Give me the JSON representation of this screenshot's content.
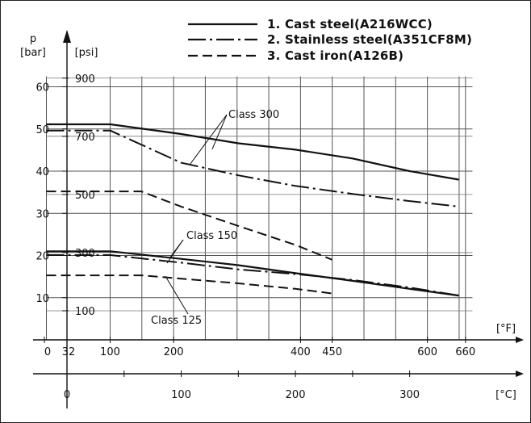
{
  "chart_data": {
    "type": "line",
    "title": "",
    "axes": {
      "left_bar": {
        "label": "p",
        "unit": "[bar]",
        "ticks": [
          10,
          20,
          30,
          40,
          50,
          60
        ],
        "range": [
          0,
          64
        ]
      },
      "left_psi": {
        "unit": "[psi]",
        "ticks": [
          100,
          300,
          500,
          700,
          900
        ]
      },
      "bottom_f": {
        "unit": "[°F]",
        "ticks": [
          "0",
          "32",
          "100",
          "200",
          "400",
          "450",
          "600",
          "660"
        ]
      },
      "bottom_c": {
        "unit": "[°C]",
        "ticks": [
          "0",
          "100",
          "200",
          "300"
        ],
        "range": [
          -18,
          355
        ]
      }
    },
    "legend": {
      "placement": "top-right",
      "entries": [
        {
          "label": "1.  Cast steel(A216WCC)",
          "style": "solid"
        },
        {
          "label": "2.  Stainless steel(A351CF8M)",
          "style": "dash-dot"
        },
        {
          "label": "3.  Cast iron(A126B)",
          "style": "dashed"
        }
      ]
    },
    "annotations": [
      "Class 300",
      "Class 150",
      "Class 125"
    ],
    "series": [
      {
        "name": "1.  Cast steel(A216WCC)",
        "group": "Class 300",
        "style": "solid",
        "x_c": [
          -18,
          38,
          100,
          150,
          200,
          250,
          300,
          343
        ],
        "y_bar": [
          51.1,
          51.1,
          48.8,
          46.6,
          45.1,
          43.0,
          40.0,
          38.0
        ]
      },
      {
        "name": "2.  Stainless steel(A351CF8M)",
        "group": "Class 300",
        "style": "dash-dot",
        "x_c": [
          -18,
          38,
          100,
          150,
          200,
          250,
          300,
          343
        ],
        "y_bar": [
          49.6,
          49.6,
          42.0,
          39.0,
          36.5,
          34.6,
          32.9,
          31.6
        ]
      },
      {
        "name": "3.  Cast iron(A126B)",
        "group": "Class 300",
        "style": "dashed",
        "x_c": [
          -18,
          65,
          100,
          150,
          200,
          232
        ],
        "y_bar": [
          35.2,
          35.2,
          31.6,
          27.0,
          22.5,
          19.0
        ]
      },
      {
        "name": "1.  Cast steel(A216WCC)",
        "group": "Class 150",
        "style": "solid",
        "x_c": [
          -18,
          38,
          100,
          150,
          200,
          250,
          300,
          343
        ],
        "y_bar": [
          21.0,
          21.0,
          19.2,
          17.7,
          15.8,
          14.0,
          12.1,
          10.5
        ]
      },
      {
        "name": "2.  Stainless steel(A351CF8M)",
        "group": "Class 150",
        "style": "dash-dot",
        "x_c": [
          -18,
          38,
          100,
          150,
          200,
          250,
          300,
          343
        ],
        "y_bar": [
          20.1,
          20.1,
          18.3,
          16.7,
          15.6,
          14.2,
          12.4,
          10.5
        ]
      },
      {
        "name": "3.  Cast iron(A126B)",
        "group": "Class 125",
        "style": "dashed",
        "x_c": [
          -18,
          65,
          100,
          150,
          200,
          232
        ],
        "y_bar": [
          15.3,
          15.3,
          14.5,
          13.4,
          12.1,
          11.0
        ]
      }
    ]
  }
}
